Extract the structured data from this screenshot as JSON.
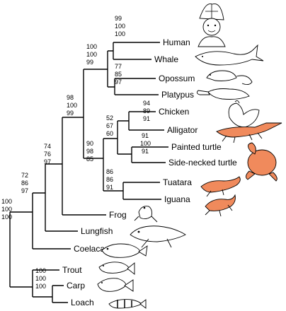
{
  "taxa": [
    {
      "id": "human",
      "label": "Human",
      "icon": "human-icon",
      "highlight": false
    },
    {
      "id": "whale",
      "label": "Whale",
      "icon": "whale-icon",
      "highlight": false
    },
    {
      "id": "opossum",
      "label": "Opossum",
      "icon": "opossum-icon",
      "highlight": false
    },
    {
      "id": "platypus",
      "label": "Platypus",
      "icon": "platypus-icon",
      "highlight": false
    },
    {
      "id": "chicken",
      "label": "Chicken",
      "icon": "chicken-icon",
      "highlight": false
    },
    {
      "id": "alligator",
      "label": "Alligator",
      "icon": "alligator-icon",
      "highlight": true
    },
    {
      "id": "painted_turtle",
      "label": "Painted turtle",
      "icon": "turtle-icon",
      "highlight": false
    },
    {
      "id": "side_necked_turtle",
      "label": "Side-necked turtle",
      "icon": "side-necked-turtle-icon",
      "highlight": true
    },
    {
      "id": "tuatara",
      "label": "Tuatara",
      "icon": "tuatara-icon",
      "highlight": true
    },
    {
      "id": "iguana",
      "label": "Iguana",
      "icon": "iguana-icon",
      "highlight": true
    },
    {
      "id": "frog",
      "label": "Frog",
      "icon": "frog-icon",
      "highlight": false
    },
    {
      "id": "lungfish",
      "label": "Lungfish",
      "icon": "lungfish-icon",
      "highlight": false
    },
    {
      "id": "coelacanth",
      "label": "Coelacanth",
      "icon": "coelacanth-icon",
      "highlight": false
    },
    {
      "id": "trout",
      "label": "Trout",
      "icon": "trout-icon",
      "highlight": false
    },
    {
      "id": "carp",
      "label": "Carp",
      "icon": "carp-icon",
      "highlight": false
    },
    {
      "id": "loach",
      "label": "Loach",
      "icon": "loach-icon",
      "highlight": false
    }
  ],
  "support_values": [
    {
      "clade": "human-whale",
      "values": [
        "99",
        "100",
        "100"
      ]
    },
    {
      "clade": "mammals",
      "values": [
        "100",
        "100",
        "99"
      ]
    },
    {
      "clade": "opossum-platypus",
      "values": [
        "77",
        "85",
        "97"
      ]
    },
    {
      "clade": "amniotes",
      "values": [
        "98",
        "100",
        "99"
      ]
    },
    {
      "clade": "chicken-alligator",
      "values": [
        "94",
        "89",
        "91"
      ]
    },
    {
      "clade": "archosaur-turtle",
      "values": [
        "52",
        "67",
        "60"
      ]
    },
    {
      "clade": "turtles",
      "values": [
        "91",
        "100",
        "91"
      ]
    },
    {
      "clade": "reptiles",
      "values": [
        "90",
        "98",
        "85"
      ]
    },
    {
      "clade": "tuatara-iguana",
      "values": [
        "86",
        "86",
        "91"
      ]
    },
    {
      "clade": "tetrapods",
      "values": [
        "74",
        "76",
        "97"
      ]
    },
    {
      "clade": "sarcopterygii-lungfish",
      "values": [
        "72",
        "86",
        "97"
      ]
    },
    {
      "clade": "root",
      "values": [
        "100",
        "100",
        "100"
      ]
    },
    {
      "clade": "teleosts",
      "values": [
        "100",
        "100",
        "100"
      ]
    }
  ],
  "colors": {
    "highlight": "#f08a5c",
    "line": "#000000"
  }
}
